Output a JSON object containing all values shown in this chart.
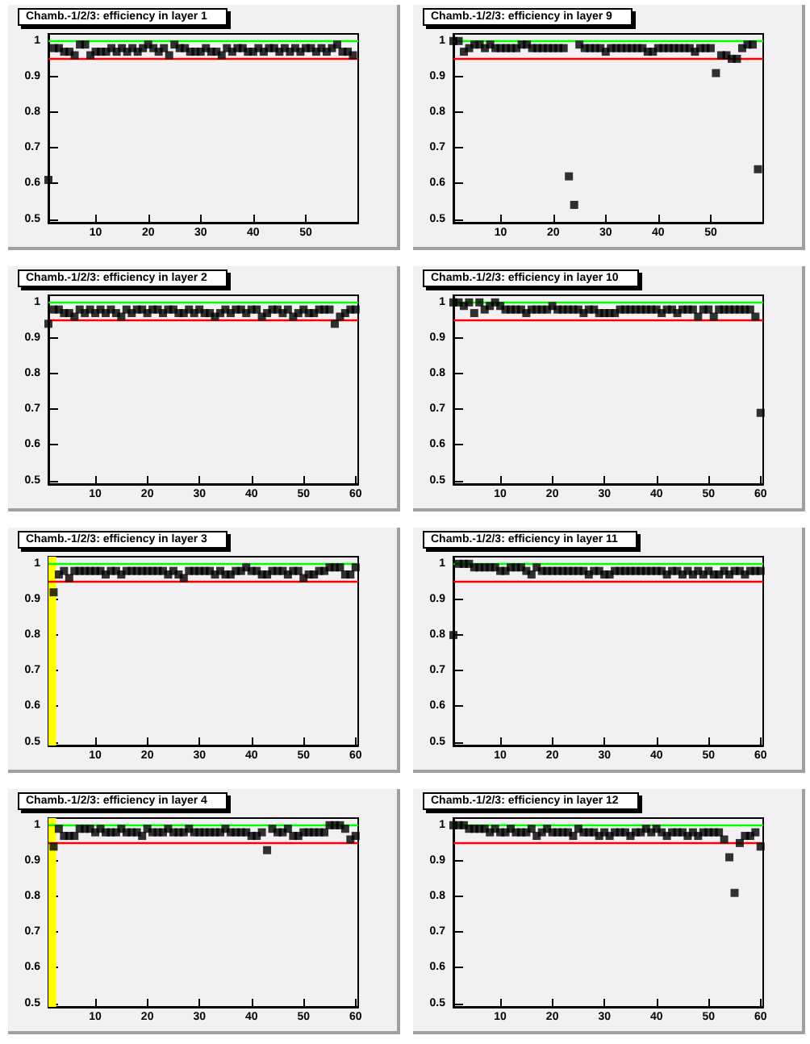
{
  "chart_data": [
    {
      "type": "scatter",
      "title": "Chamb.-1/2/3: efficiency in layer 1",
      "x": [
        1,
        2,
        3,
        4,
        5,
        6,
        7,
        8,
        9,
        10,
        11,
        12,
        13,
        14,
        15,
        16,
        17,
        18,
        19,
        20,
        21,
        22,
        23,
        24,
        25,
        26,
        27,
        28,
        29,
        30,
        31,
        32,
        33,
        34,
        35,
        36,
        37,
        38,
        39,
        40,
        41,
        42,
        43,
        44,
        45,
        46,
        47,
        48,
        49,
        50,
        51,
        52,
        53,
        54,
        55,
        56,
        57,
        58,
        59
      ],
      "values": [
        0.61,
        0.98,
        0.98,
        0.97,
        0.97,
        0.96,
        0.99,
        0.99,
        0.96,
        0.97,
        0.97,
        0.97,
        0.98,
        0.97,
        0.98,
        0.97,
        0.98,
        0.97,
        0.98,
        0.99,
        0.98,
        0.97,
        0.98,
        0.96,
        0.99,
        0.98,
        0.98,
        0.97,
        0.97,
        0.97,
        0.98,
        0.97,
        0.97,
        0.96,
        0.98,
        0.97,
        0.98,
        0.98,
        0.97,
        0.97,
        0.98,
        0.97,
        0.98,
        0.98,
        0.97,
        0.98,
        0.97,
        0.98,
        0.97,
        0.98,
        0.98,
        0.97,
        0.98,
        0.97,
        0.98,
        0.99,
        0.97,
        0.97,
        0.96
      ],
      "color": "#000000",
      "marker": "square",
      "xlim": [
        1,
        60
      ],
      "xticks": [
        10,
        20,
        30,
        40,
        50
      ],
      "ylim": [
        0.49,
        1.02
      ],
      "yticks": [
        0.5,
        0.6,
        0.7,
        0.8,
        0.9,
        1
      ],
      "ref_lines": [
        {
          "axis": "y",
          "value": 1,
          "color": "#00ff00"
        },
        {
          "axis": "y",
          "value": 0.95,
          "color": "#ff0000"
        }
      ]
    },
    {
      "type": "scatter",
      "title": "Chamb.-1/2/3: efficiency in layer 9",
      "x": [
        1,
        2,
        3,
        4,
        5,
        6,
        7,
        8,
        9,
        10,
        11,
        12,
        13,
        14,
        15,
        16,
        17,
        18,
        19,
        20,
        21,
        22,
        23,
        24,
        25,
        26,
        27,
        28,
        29,
        30,
        31,
        32,
        33,
        34,
        35,
        36,
        37,
        38,
        39,
        40,
        41,
        42,
        43,
        44,
        45,
        46,
        47,
        48,
        49,
        50,
        51,
        52,
        53,
        54,
        55,
        56,
        57,
        58,
        59
      ],
      "values": [
        1.0,
        1.0,
        0.97,
        0.98,
        0.99,
        0.99,
        0.98,
        0.99,
        0.98,
        0.98,
        0.98,
        0.98,
        0.98,
        0.99,
        0.99,
        0.98,
        0.98,
        0.98,
        0.98,
        0.98,
        0.98,
        0.98,
        0.62,
        0.54,
        0.99,
        0.98,
        0.98,
        0.98,
        0.98,
        0.97,
        0.98,
        0.98,
        0.98,
        0.98,
        0.98,
        0.98,
        0.98,
        0.97,
        0.97,
        0.98,
        0.98,
        0.98,
        0.98,
        0.98,
        0.98,
        0.98,
        0.97,
        0.98,
        0.98,
        0.98,
        0.91,
        0.96,
        0.96,
        0.95,
        0.95,
        0.98,
        0.99,
        0.99,
        0.64
      ],
      "color": "#000000",
      "marker": "square",
      "xlim": [
        1,
        60
      ],
      "xticks": [
        10,
        20,
        30,
        40,
        50
      ],
      "ylim": [
        0.49,
        1.02
      ],
      "yticks": [
        0.5,
        0.6,
        0.7,
        0.8,
        0.9,
        1
      ],
      "ref_lines": [
        {
          "axis": "y",
          "value": 1,
          "color": "#00ff00"
        },
        {
          "axis": "y",
          "value": 0.95,
          "color": "#ff0000"
        }
      ]
    },
    {
      "type": "scatter",
      "title": "Chamb.-1/2/3: efficiency in layer 2",
      "x": [
        1,
        2,
        3,
        4,
        5,
        6,
        7,
        8,
        9,
        10,
        11,
        12,
        13,
        14,
        15,
        16,
        17,
        18,
        19,
        20,
        21,
        22,
        23,
        24,
        25,
        26,
        27,
        28,
        29,
        30,
        31,
        32,
        33,
        34,
        35,
        36,
        37,
        38,
        39,
        40,
        41,
        42,
        43,
        44,
        45,
        46,
        47,
        48,
        49,
        50,
        51,
        52,
        53,
        54,
        55,
        56,
        57,
        58,
        59,
        60
      ],
      "values": [
        0.94,
        0.98,
        0.98,
        0.97,
        0.97,
        0.96,
        0.98,
        0.97,
        0.98,
        0.97,
        0.98,
        0.97,
        0.98,
        0.97,
        0.96,
        0.98,
        0.97,
        0.98,
        0.98,
        0.97,
        0.98,
        0.98,
        0.97,
        0.98,
        0.98,
        0.97,
        0.97,
        0.98,
        0.97,
        0.98,
        0.97,
        0.97,
        0.96,
        0.97,
        0.98,
        0.97,
        0.98,
        0.98,
        0.97,
        0.98,
        0.98,
        0.96,
        0.97,
        0.98,
        0.98,
        0.97,
        0.98,
        0.96,
        0.97,
        0.98,
        0.97,
        0.97,
        0.98,
        0.98,
        0.98,
        0.94,
        0.96,
        0.97,
        0.98,
        0.98
      ],
      "color": "#000000",
      "marker": "square",
      "xlim": [
        1,
        60.5
      ],
      "xticks": [
        10,
        20,
        30,
        40,
        50,
        60
      ],
      "ylim": [
        0.49,
        1.02
      ],
      "yticks": [
        0.5,
        0.6,
        0.7,
        0.8,
        0.9,
        1
      ],
      "ref_lines": [
        {
          "axis": "y",
          "value": 1,
          "color": "#00ff00"
        },
        {
          "axis": "y",
          "value": 0.95,
          "color": "#ff0000"
        }
      ]
    },
    {
      "type": "scatter",
      "title": "Chamb.-1/2/3: efficiency in layer 10",
      "x": [
        1,
        2,
        3,
        4,
        5,
        6,
        7,
        8,
        9,
        10,
        11,
        12,
        13,
        14,
        15,
        16,
        17,
        18,
        19,
        20,
        21,
        22,
        23,
        24,
        25,
        26,
        27,
        28,
        29,
        30,
        31,
        32,
        33,
        34,
        35,
        36,
        37,
        38,
        39,
        40,
        41,
        42,
        43,
        44,
        45,
        46,
        47,
        48,
        49,
        50,
        51,
        52,
        53,
        54,
        55,
        56,
        57,
        58,
        59,
        60
      ],
      "values": [
        1.0,
        1.0,
        0.99,
        1.0,
        0.97,
        1.0,
        0.98,
        0.99,
        1.0,
        0.99,
        0.98,
        0.98,
        0.98,
        0.98,
        0.97,
        0.98,
        0.98,
        0.98,
        0.98,
        0.99,
        0.98,
        0.98,
        0.98,
        0.98,
        0.98,
        0.97,
        0.98,
        0.98,
        0.97,
        0.97,
        0.97,
        0.97,
        0.98,
        0.98,
        0.98,
        0.98,
        0.98,
        0.98,
        0.98,
        0.98,
        0.97,
        0.98,
        0.98,
        0.97,
        0.98,
        0.98,
        0.98,
        0.96,
        0.98,
        0.98,
        0.96,
        0.98,
        0.98,
        0.98,
        0.98,
        0.98,
        0.98,
        0.98,
        0.96,
        0.69
      ],
      "color": "#000000",
      "marker": "square",
      "xlim": [
        1,
        60.5
      ],
      "xticks": [
        10,
        20,
        30,
        40,
        50,
        60
      ],
      "ylim": [
        0.49,
        1.02
      ],
      "yticks": [
        0.5,
        0.6,
        0.7,
        0.8,
        0.9,
        1
      ],
      "ref_lines": [
        {
          "axis": "y",
          "value": 1,
          "color": "#00ff00"
        },
        {
          "axis": "y",
          "value": 0.95,
          "color": "#ff0000"
        }
      ]
    },
    {
      "type": "scatter",
      "title": "Chamb.-1/2/3: efficiency in layer 3",
      "x": [
        2,
        3,
        4,
        5,
        6,
        7,
        8,
        9,
        10,
        11,
        12,
        13,
        14,
        15,
        16,
        17,
        18,
        19,
        20,
        21,
        22,
        23,
        24,
        25,
        26,
        27,
        28,
        29,
        30,
        31,
        32,
        33,
        34,
        35,
        36,
        37,
        38,
        39,
        40,
        41,
        42,
        43,
        44,
        45,
        46,
        47,
        48,
        49,
        50,
        51,
        52,
        53,
        54,
        55,
        56,
        57,
        58,
        59,
        60
      ],
      "values": [
        0.92,
        0.97,
        0.98,
        0.96,
        0.98,
        0.98,
        0.98,
        0.98,
        0.98,
        0.98,
        0.97,
        0.98,
        0.98,
        0.97,
        0.98,
        0.98,
        0.98,
        0.98,
        0.98,
        0.98,
        0.98,
        0.98,
        0.97,
        0.98,
        0.97,
        0.96,
        0.98,
        0.98,
        0.98,
        0.98,
        0.98,
        0.97,
        0.98,
        0.97,
        0.97,
        0.98,
        0.98,
        0.99,
        0.98,
        0.98,
        0.97,
        0.97,
        0.98,
        0.98,
        0.98,
        0.97,
        0.98,
        0.98,
        0.96,
        0.97,
        0.97,
        0.98,
        0.98,
        0.99,
        0.99,
        0.99,
        0.97,
        0.97,
        0.99
      ],
      "color": "#000000",
      "marker": "square",
      "xlim": [
        1,
        60.5
      ],
      "xticks": [
        10,
        20,
        30,
        40,
        50,
        60
      ],
      "ylim": [
        0.49,
        1.02
      ],
      "yticks": [
        0.5,
        0.6,
        0.7,
        0.8,
        0.9,
        1
      ],
      "ref_lines": [
        {
          "axis": "y",
          "value": 1,
          "color": "#00ff00"
        },
        {
          "axis": "y",
          "value": 0.95,
          "color": "#ff0000"
        }
      ],
      "bands": [
        {
          "axis": "x",
          "from": 1,
          "to": 2.5,
          "color": "#ffff00"
        }
      ]
    },
    {
      "type": "scatter",
      "title": "Chamb.-1/2/3: efficiency in layer 11",
      "x": [
        1,
        2,
        3,
        4,
        5,
        6,
        7,
        8,
        9,
        10,
        11,
        12,
        13,
        14,
        15,
        16,
        17,
        18,
        19,
        20,
        21,
        22,
        23,
        24,
        25,
        26,
        27,
        28,
        29,
        30,
        31,
        32,
        33,
        34,
        35,
        36,
        37,
        38,
        39,
        40,
        41,
        42,
        43,
        44,
        45,
        46,
        47,
        48,
        49,
        50,
        51,
        52,
        53,
        54,
        55,
        56,
        57,
        58,
        59,
        60
      ],
      "values": [
        0.8,
        1.0,
        1.0,
        1.0,
        0.99,
        0.99,
        0.99,
        0.99,
        0.99,
        0.98,
        0.98,
        0.99,
        0.99,
        0.99,
        0.98,
        0.97,
        0.99,
        0.98,
        0.98,
        0.98,
        0.98,
        0.98,
        0.98,
        0.98,
        0.98,
        0.98,
        0.97,
        0.98,
        0.98,
        0.97,
        0.97,
        0.98,
        0.98,
        0.98,
        0.98,
        0.98,
        0.98,
        0.98,
        0.98,
        0.98,
        0.98,
        0.97,
        0.98,
        0.98,
        0.97,
        0.98,
        0.97,
        0.98,
        0.97,
        0.98,
        0.97,
        0.97,
        0.98,
        0.97,
        0.98,
        0.98,
        0.97,
        0.98,
        0.98,
        0.98
      ],
      "color": "#000000",
      "marker": "square",
      "xlim": [
        1,
        60.5
      ],
      "xticks": [
        10,
        20,
        30,
        40,
        50,
        60
      ],
      "ylim": [
        0.49,
        1.02
      ],
      "yticks": [
        0.5,
        0.6,
        0.7,
        0.8,
        0.9,
        1
      ],
      "ref_lines": [
        {
          "axis": "y",
          "value": 1,
          "color": "#00ff00"
        },
        {
          "axis": "y",
          "value": 0.95,
          "color": "#ff0000"
        }
      ]
    },
    {
      "type": "scatter",
      "title": "Chamb.-1/2/3: efficiency in layer 4",
      "x": [
        2,
        3,
        4,
        5,
        6,
        7,
        8,
        9,
        10,
        11,
        12,
        13,
        14,
        15,
        16,
        17,
        18,
        19,
        20,
        21,
        22,
        23,
        24,
        25,
        26,
        27,
        28,
        29,
        30,
        31,
        32,
        33,
        34,
        35,
        36,
        37,
        38,
        39,
        40,
        41,
        42,
        43,
        44,
        45,
        46,
        47,
        48,
        49,
        50,
        51,
        52,
        53,
        54,
        55,
        56,
        57,
        58,
        59,
        60
      ],
      "values": [
        0.94,
        0.99,
        0.97,
        0.97,
        0.97,
        0.99,
        0.99,
        0.99,
        0.98,
        0.99,
        0.98,
        0.98,
        0.98,
        0.99,
        0.98,
        0.98,
        0.98,
        0.97,
        0.99,
        0.98,
        0.98,
        0.98,
        0.99,
        0.98,
        0.98,
        0.98,
        0.99,
        0.98,
        0.98,
        0.98,
        0.98,
        0.98,
        0.98,
        0.99,
        0.98,
        0.98,
        0.98,
        0.98,
        0.97,
        0.97,
        0.98,
        0.93,
        0.99,
        0.98,
        0.98,
        0.99,
        0.97,
        0.97,
        0.98,
        0.98,
        0.98,
        0.98,
        0.98,
        1.0,
        1.0,
        1.0,
        0.99,
        0.96,
        0.97
      ],
      "color": "#000000",
      "marker": "square",
      "xlim": [
        1,
        60.5
      ],
      "xticks": [
        10,
        20,
        30,
        40,
        50,
        60
      ],
      "ylim": [
        0.49,
        1.02
      ],
      "yticks": [
        0.5,
        0.6,
        0.7,
        0.8,
        0.9,
        1
      ],
      "ref_lines": [
        {
          "axis": "y",
          "value": 1,
          "color": "#00ff00"
        },
        {
          "axis": "y",
          "value": 0.95,
          "color": "#ff0000"
        }
      ],
      "bands": [
        {
          "axis": "x",
          "from": 1,
          "to": 2.5,
          "color": "#ffff00"
        }
      ]
    },
    {
      "type": "scatter",
      "title": "Chamb.-1/2/3: efficiency in layer 12",
      "x": [
        1,
        2,
        3,
        4,
        5,
        6,
        7,
        8,
        9,
        10,
        11,
        12,
        13,
        14,
        15,
        16,
        17,
        18,
        19,
        20,
        21,
        22,
        23,
        24,
        25,
        26,
        27,
        28,
        29,
        30,
        31,
        32,
        33,
        34,
        35,
        36,
        37,
        38,
        39,
        40,
        41,
        42,
        43,
        44,
        45,
        46,
        47,
        48,
        49,
        50,
        51,
        52,
        53,
        54,
        55,
        56,
        57,
        58,
        59,
        60
      ],
      "values": [
        1.0,
        1.0,
        1.0,
        0.99,
        0.99,
        0.99,
        0.99,
        0.98,
        0.99,
        0.98,
        0.98,
        0.99,
        0.98,
        0.98,
        0.98,
        0.99,
        0.97,
        0.98,
        0.99,
        0.98,
        0.98,
        0.98,
        0.98,
        0.97,
        0.99,
        0.98,
        0.98,
        0.98,
        0.97,
        0.98,
        0.97,
        0.98,
        0.98,
        0.98,
        0.97,
        0.98,
        0.98,
        0.99,
        0.98,
        0.99,
        0.98,
        0.97,
        0.98,
        0.98,
        0.98,
        0.97,
        0.98,
        0.97,
        0.98,
        0.98,
        0.98,
        0.98,
        0.96,
        0.91,
        0.81,
        0.95,
        0.97,
        0.97,
        0.98,
        0.94
      ],
      "color": "#000000",
      "marker": "square",
      "xlim": [
        1,
        60.5
      ],
      "xticks": [
        10,
        20,
        30,
        40,
        50,
        60
      ],
      "ylim": [
        0.49,
        1.02
      ],
      "yticks": [
        0.5,
        0.6,
        0.7,
        0.8,
        0.9,
        1
      ],
      "ref_lines": [
        {
          "axis": "y",
          "value": 1,
          "color": "#00ff00"
        },
        {
          "axis": "y",
          "value": 0.95,
          "color": "#ff0000"
        }
      ]
    }
  ]
}
